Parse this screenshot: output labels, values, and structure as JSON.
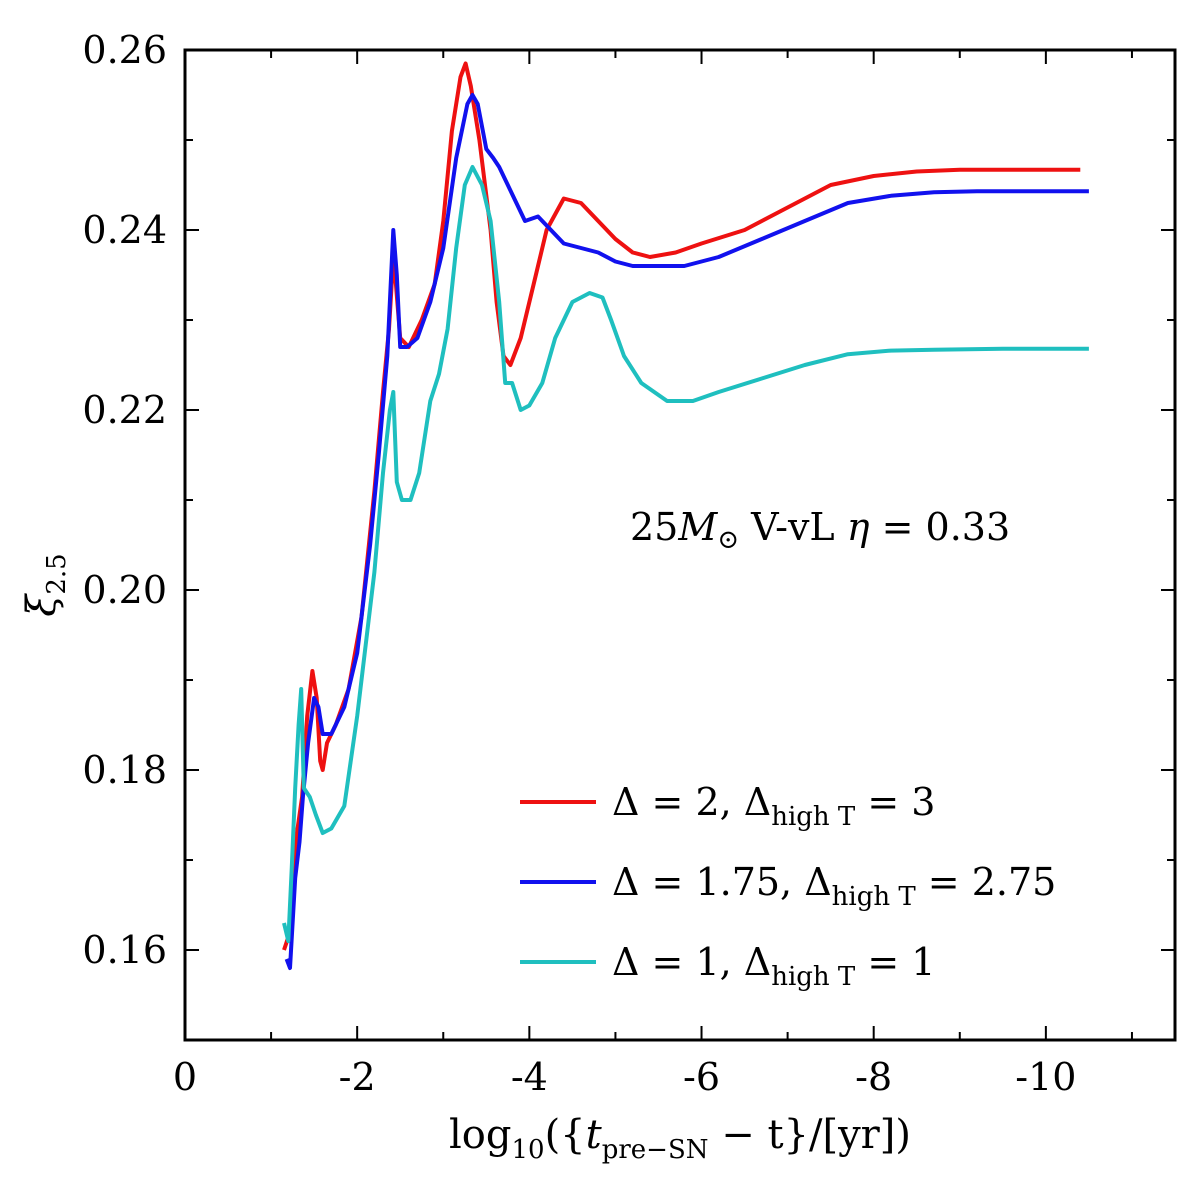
{
  "chart_data": {
    "type": "line",
    "xlabel": {
      "prefix": "log",
      "prefix_sub": "10",
      "open": "({",
      "var": "t",
      "var_sub": "pre−SN",
      "rest": " − t}/[yr])"
    },
    "ylabel": {
      "sym": "ξ",
      "sub": "2.5"
    },
    "annotation": {
      "mass": "25",
      "mass_sym": "M",
      "mass_sub": "⊙",
      "rest": " V-vL ",
      "eta": "η",
      "eq": " = 0.33"
    },
    "xlim": [
      0,
      -11.5
    ],
    "ylim": [
      0.15,
      0.26
    ],
    "x_ticks": [
      "0",
      "-2",
      "-4",
      "-6",
      "-8",
      "-10"
    ],
    "x_tick_values": [
      0,
      -2,
      -4,
      -6,
      -8,
      -10
    ],
    "y_ticks": [
      "0.16",
      "0.18",
      "0.20",
      "0.22",
      "0.24",
      "0.26"
    ],
    "y_tick_values": [
      0.16,
      0.18,
      0.2,
      0.22,
      0.24,
      0.26
    ],
    "grid": false,
    "legend_position": "bottom-right",
    "series": [
      {
        "name": {
          "a": "Δ = 2, Δ",
          "sub": "high T",
          "b": " = 3"
        },
        "color": "#ee1111",
        "points": [
          [
            -1.15,
            0.16
          ],
          [
            -1.22,
            0.162
          ],
          [
            -1.3,
            0.173
          ],
          [
            -1.36,
            0.177
          ],
          [
            -1.42,
            0.186
          ],
          [
            -1.48,
            0.191
          ],
          [
            -1.53,
            0.188
          ],
          [
            -1.57,
            0.181
          ],
          [
            -1.6,
            0.18
          ],
          [
            -1.65,
            0.183
          ],
          [
            -1.75,
            0.185
          ],
          [
            -1.9,
            0.189
          ],
          [
            -2.05,
            0.197
          ],
          [
            -2.2,
            0.211
          ],
          [
            -2.3,
            0.222
          ],
          [
            -2.37,
            0.229
          ],
          [
            -2.42,
            0.237
          ],
          [
            -2.45,
            0.234
          ],
          [
            -2.5,
            0.228
          ],
          [
            -2.6,
            0.227
          ],
          [
            -2.75,
            0.23
          ],
          [
            -2.9,
            0.234
          ],
          [
            -3.0,
            0.241
          ],
          [
            -3.1,
            0.251
          ],
          [
            -3.2,
            0.257
          ],
          [
            -3.26,
            0.2585
          ],
          [
            -3.32,
            0.256
          ],
          [
            -3.42,
            0.25
          ],
          [
            -3.55,
            0.24
          ],
          [
            -3.62,
            0.232
          ],
          [
            -3.7,
            0.226
          ],
          [
            -3.78,
            0.225
          ],
          [
            -3.9,
            0.228
          ],
          [
            -4.05,
            0.234
          ],
          [
            -4.2,
            0.24
          ],
          [
            -4.4,
            0.2435
          ],
          [
            -4.6,
            0.243
          ],
          [
            -4.8,
            0.241
          ],
          [
            -5.0,
            0.239
          ],
          [
            -5.2,
            0.2375
          ],
          [
            -5.4,
            0.237
          ],
          [
            -5.7,
            0.2375
          ],
          [
            -6.0,
            0.2385
          ],
          [
            -6.5,
            0.24
          ],
          [
            -7.0,
            0.2425
          ],
          [
            -7.5,
            0.245
          ],
          [
            -8.0,
            0.246
          ],
          [
            -8.5,
            0.2465
          ],
          [
            -9.0,
            0.2467
          ],
          [
            -10.0,
            0.2467
          ],
          [
            -10.4,
            0.2467
          ]
        ]
      },
      {
        "name": {
          "a": "Δ = 1.75, Δ",
          "sub": "high T",
          "b": " = 2.75"
        },
        "color": "#1111ee",
        "points": [
          [
            -1.18,
            0.159
          ],
          [
            -1.22,
            0.158
          ],
          [
            -1.28,
            0.168
          ],
          [
            -1.33,
            0.172
          ],
          [
            -1.37,
            0.177
          ],
          [
            -1.43,
            0.183
          ],
          [
            -1.5,
            0.188
          ],
          [
            -1.55,
            0.187
          ],
          [
            -1.6,
            0.184
          ],
          [
            -1.7,
            0.184
          ],
          [
            -1.85,
            0.187
          ],
          [
            -2.0,
            0.193
          ],
          [
            -2.15,
            0.205
          ],
          [
            -2.25,
            0.215
          ],
          [
            -2.35,
            0.226
          ],
          [
            -2.42,
            0.24
          ],
          [
            -2.46,
            0.235
          ],
          [
            -2.5,
            0.227
          ],
          [
            -2.58,
            0.227
          ],
          [
            -2.7,
            0.228
          ],
          [
            -2.85,
            0.232
          ],
          [
            -3.0,
            0.238
          ],
          [
            -3.15,
            0.248
          ],
          [
            -3.28,
            0.254
          ],
          [
            -3.34,
            0.255
          ],
          [
            -3.4,
            0.254
          ],
          [
            -3.5,
            0.249
          ],
          [
            -3.58,
            0.248
          ],
          [
            -3.65,
            0.247
          ],
          [
            -3.8,
            0.244
          ],
          [
            -3.95,
            0.241
          ],
          [
            -4.1,
            0.2415
          ],
          [
            -4.25,
            0.24
          ],
          [
            -4.4,
            0.2385
          ],
          [
            -4.6,
            0.238
          ],
          [
            -4.8,
            0.2375
          ],
          [
            -5.0,
            0.2365
          ],
          [
            -5.2,
            0.236
          ],
          [
            -5.5,
            0.236
          ],
          [
            -5.8,
            0.236
          ],
          [
            -6.2,
            0.237
          ],
          [
            -6.7,
            0.239
          ],
          [
            -7.2,
            0.241
          ],
          [
            -7.7,
            0.243
          ],
          [
            -8.2,
            0.2438
          ],
          [
            -8.7,
            0.2442
          ],
          [
            -9.2,
            0.2443
          ],
          [
            -10.0,
            0.2443
          ],
          [
            -10.5,
            0.2443
          ]
        ]
      },
      {
        "name": {
          "a": "Δ = 1, Δ",
          "sub": "high T",
          "b": " = 1"
        },
        "color": "#1fbfbf",
        "points": [
          [
            -1.15,
            0.163
          ],
          [
            -1.2,
            0.161
          ],
          [
            -1.24,
            0.169
          ],
          [
            -1.28,
            0.178
          ],
          [
            -1.32,
            0.185
          ],
          [
            -1.35,
            0.189
          ],
          [
            -1.38,
            0.178
          ],
          [
            -1.45,
            0.177
          ],
          [
            -1.52,
            0.175
          ],
          [
            -1.6,
            0.173
          ],
          [
            -1.7,
            0.1735
          ],
          [
            -1.85,
            0.176
          ],
          [
            -2.0,
            0.186
          ],
          [
            -2.1,
            0.194
          ],
          [
            -2.2,
            0.202
          ],
          [
            -2.3,
            0.213
          ],
          [
            -2.38,
            0.22
          ],
          [
            -2.42,
            0.222
          ],
          [
            -2.46,
            0.212
          ],
          [
            -2.52,
            0.21
          ],
          [
            -2.62,
            0.21
          ],
          [
            -2.72,
            0.213
          ],
          [
            -2.85,
            0.221
          ],
          [
            -2.95,
            0.224
          ],
          [
            -3.05,
            0.229
          ],
          [
            -3.15,
            0.238
          ],
          [
            -3.25,
            0.245
          ],
          [
            -3.34,
            0.247
          ],
          [
            -3.45,
            0.245
          ],
          [
            -3.55,
            0.241
          ],
          [
            -3.65,
            0.232
          ],
          [
            -3.72,
            0.223
          ],
          [
            -3.8,
            0.223
          ],
          [
            -3.9,
            0.22
          ],
          [
            -4.0,
            0.2205
          ],
          [
            -4.15,
            0.223
          ],
          [
            -4.3,
            0.228
          ],
          [
            -4.5,
            0.232
          ],
          [
            -4.7,
            0.233
          ],
          [
            -4.85,
            0.2325
          ],
          [
            -4.95,
            0.23
          ],
          [
            -5.1,
            0.226
          ],
          [
            -5.3,
            0.223
          ],
          [
            -5.6,
            0.221
          ],
          [
            -5.9,
            0.221
          ],
          [
            -6.2,
            0.222
          ],
          [
            -6.7,
            0.2235
          ],
          [
            -7.2,
            0.225
          ],
          [
            -7.7,
            0.2262
          ],
          [
            -8.2,
            0.2266
          ],
          [
            -8.7,
            0.2267
          ],
          [
            -9.5,
            0.2268
          ],
          [
            -10.5,
            0.2268
          ]
        ]
      }
    ]
  }
}
